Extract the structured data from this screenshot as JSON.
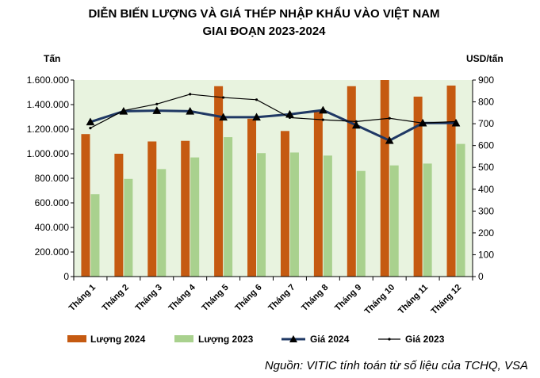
{
  "chart_data": {
    "type": "bar",
    "title_line1": "DIỄN BIẾN LƯỢNG VÀ GIÁ THÉP NHẬP KHẨU VÀO VIỆT NAM",
    "title_line2": "GIAI ĐOẠN 2023-2024",
    "ylabel_left": "Tấn",
    "ylabel_right": "USD/tấn",
    "categories": [
      "Tháng 1",
      "Tháng 2",
      "Tháng 3",
      "Tháng 4",
      "Tháng 5",
      "Tháng 6",
      "Tháng 7",
      "Tháng 8",
      "Tháng 9",
      "Tháng 10",
      "Tháng 11",
      "Tháng 12"
    ],
    "ylim_left": [
      0,
      1600000
    ],
    "ylim_right": [
      0,
      900
    ],
    "left_ticks": [
      "0",
      "200.000",
      "400.000",
      "600.000",
      "800.000",
      "1.000.000",
      "1.200.000",
      "1.400.000",
      "1.600.000"
    ],
    "right_ticks": [
      "0",
      "100",
      "200",
      "300",
      "400",
      "500",
      "600",
      "700",
      "800",
      "900"
    ],
    "bar_series": [
      {
        "name": "Lượng 2024",
        "color": "#C55A11",
        "values": [
          1160000,
          1000000,
          1100000,
          1105000,
          1550000,
          1285000,
          1185000,
          1340000,
          1550000,
          1600000,
          1465000,
          1555000
        ]
      },
      {
        "name": "Lượng 2023",
        "color": "#A9D18E",
        "values": [
          670000,
          795000,
          875000,
          970000,
          1135000,
          1005000,
          1010000,
          985000,
          860000,
          905000,
          920000,
          1080000
        ]
      }
    ],
    "line_series": [
      {
        "name": "Giá 2024",
        "color": "#1F3864",
        "marker": "triangle",
        "values": [
          708,
          757,
          760,
          757,
          730,
          730,
          743,
          762,
          693,
          623,
          703,
          703
        ]
      },
      {
        "name": "Giá 2023",
        "color": "#000000",
        "marker": "dot",
        "values": [
          680,
          760,
          790,
          835,
          820,
          810,
          728,
          718,
          710,
          725,
          703,
          710
        ]
      }
    ],
    "grid": false,
    "legend_position": "bottom",
    "plot_background": "#E8F3DF"
  },
  "source_note": "Nguồn: VITIC tính toán từ số liệu của TCHQ, VSA"
}
